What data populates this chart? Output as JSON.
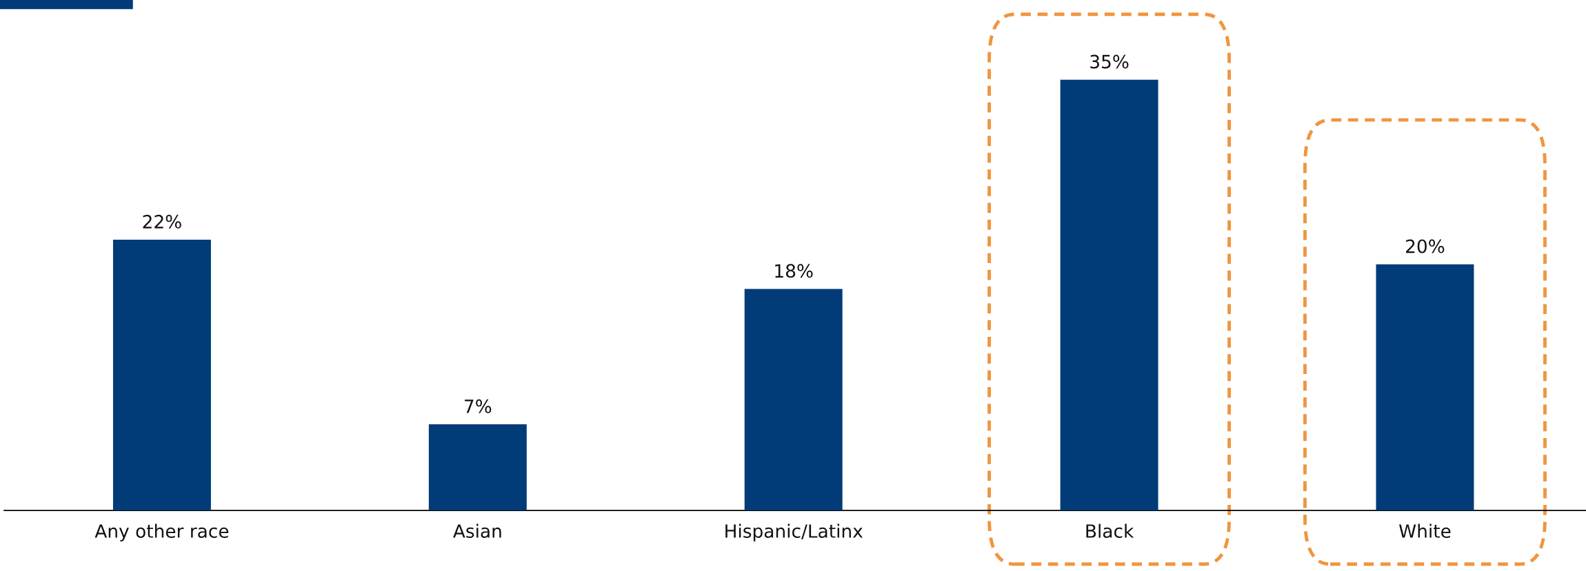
{
  "chart_data": {
    "type": "bar",
    "categories": [
      "Any other race",
      "Asian",
      "Hispanic/Latinx",
      "Black",
      "White"
    ],
    "values": [
      22,
      7,
      18,
      35,
      20
    ],
    "value_labels": [
      "22%",
      "7%",
      "18%",
      "35%",
      "20%"
    ],
    "color": "#013b78",
    "grid": false,
    "legend": false
  }
}
